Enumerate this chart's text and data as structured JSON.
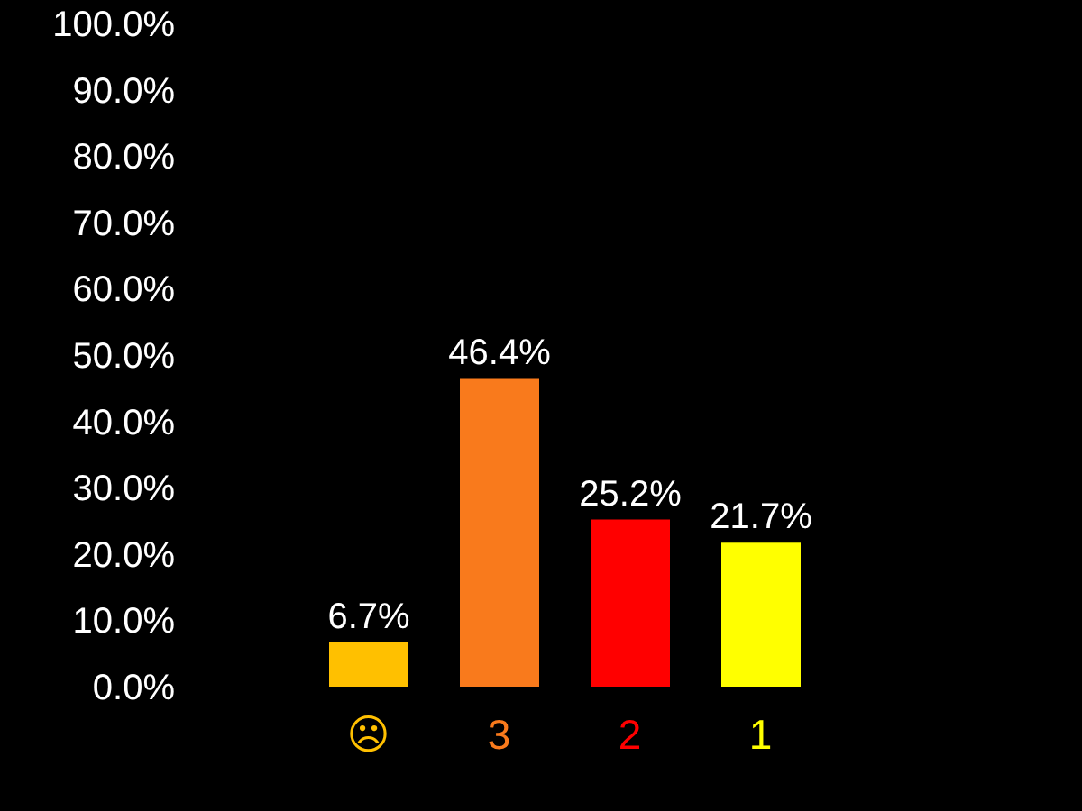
{
  "chart_data": {
    "type": "bar",
    "categories": [
      "☹",
      "3",
      "2",
      "1"
    ],
    "values": [
      6.7,
      46.4,
      25.2,
      21.7
    ],
    "colors": [
      "#ffc000",
      "#f97a1c",
      "#ff0000",
      "#ffff00"
    ],
    "value_labels": [
      "6.7%",
      "46.4%",
      "25.2%",
      "21.7%"
    ],
    "ylim": [
      0,
      100
    ],
    "yticks": [
      {
        "value": 0,
        "label": "0.0%"
      },
      {
        "value": 10,
        "label": "10.0%"
      },
      {
        "value": 20,
        "label": "20.0%"
      },
      {
        "value": 30,
        "label": "30.0%"
      },
      {
        "value": 40,
        "label": "40.0%"
      },
      {
        "value": 50,
        "label": "50.0%"
      },
      {
        "value": 60,
        "label": "60.0%"
      },
      {
        "value": 70,
        "label": "70.0%"
      },
      {
        "value": 80,
        "label": "80.0%"
      },
      {
        "value": 90,
        "label": "90.0%"
      },
      {
        "value": 100,
        "label": "100.0%"
      }
    ]
  }
}
